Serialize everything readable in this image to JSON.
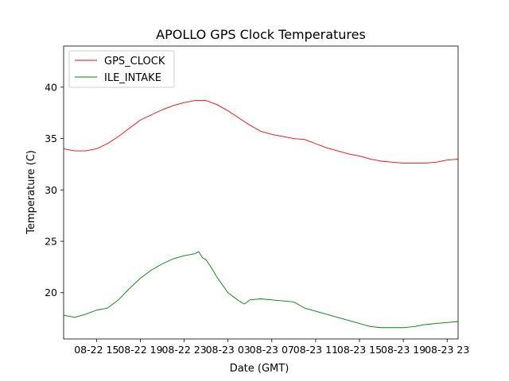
{
  "chart_data": {
    "type": "line",
    "title": "APOLLO GPS Clock Temperatures",
    "xlabel": "Date (GMT)",
    "ylabel": "Temperature (C)",
    "x_unit": "hours",
    "xlim": [
      "08-22 12:00",
      "08-24 00:00"
    ],
    "ylim": [
      15.5,
      44
    ],
    "y_ticks": [
      20,
      25,
      30,
      35,
      40
    ],
    "x_ticks": [
      "08-22 15",
      "08-22 19",
      "08-22 23",
      "08-23 03",
      "08-23 07",
      "08-23 11",
      "08-23 15",
      "08-23 19",
      "08-23 23"
    ],
    "x_tick_times": [
      "08-22 15:00",
      "08-22 19:00",
      "08-22 23:00",
      "08-23 03:00",
      "08-23 07:00",
      "08-23 11:00",
      "08-23 15:00",
      "08-23 19:00",
      "08-23 23:00"
    ],
    "legend": {
      "position": "top-left"
    },
    "grid": false,
    "series": [
      {
        "name": "GPS_CLOCK",
        "color": "#ff0000",
        "points": [
          [
            "08-22 12:00",
            34.0
          ],
          [
            "08-22 13:00",
            33.8
          ],
          [
            "08-22 14:00",
            33.8
          ],
          [
            "08-22 15:00",
            34.0
          ],
          [
            "08-22 16:00",
            34.5
          ],
          [
            "08-22 17:00",
            35.2
          ],
          [
            "08-22 18:00",
            36.0
          ],
          [
            "08-22 19:00",
            36.8
          ],
          [
            "08-22 20:00",
            37.3
          ],
          [
            "08-22 21:00",
            37.8
          ],
          [
            "08-22 22:00",
            38.2
          ],
          [
            "08-22 23:00",
            38.5
          ],
          [
            "08-23 00:00",
            38.7
          ],
          [
            "08-23 01:00",
            38.7
          ],
          [
            "08-23 02:00",
            38.3
          ],
          [
            "08-23 03:00",
            37.7
          ],
          [
            "08-23 04:00",
            37.0
          ],
          [
            "08-23 05:00",
            36.3
          ],
          [
            "08-23 06:00",
            35.7
          ],
          [
            "08-23 07:00",
            35.4
          ],
          [
            "08-23 08:00",
            35.2
          ],
          [
            "08-23 09:00",
            35.0
          ],
          [
            "08-23 10:00",
            34.9
          ],
          [
            "08-23 11:00",
            34.5
          ],
          [
            "08-23 12:00",
            34.1
          ],
          [
            "08-23 13:00",
            33.8
          ],
          [
            "08-23 14:00",
            33.5
          ],
          [
            "08-23 15:00",
            33.3
          ],
          [
            "08-23 16:00",
            33.0
          ],
          [
            "08-23 17:00",
            32.8
          ],
          [
            "08-23 18:00",
            32.7
          ],
          [
            "08-23 19:00",
            32.6
          ],
          [
            "08-23 20:00",
            32.6
          ],
          [
            "08-23 21:00",
            32.6
          ],
          [
            "08-23 22:00",
            32.7
          ],
          [
            "08-23 23:00",
            32.9
          ],
          [
            "08-24 00:00",
            33.0
          ]
        ]
      },
      {
        "name": "ILE_INTAKE",
        "color": "#008000",
        "points": [
          [
            "08-22 12:00",
            17.8
          ],
          [
            "08-22 13:00",
            17.6
          ],
          [
            "08-22 14:00",
            17.9
          ],
          [
            "08-22 15:00",
            18.3
          ],
          [
            "08-22 16:00",
            18.5
          ],
          [
            "08-22 17:00",
            19.3
          ],
          [
            "08-22 18:00",
            20.4
          ],
          [
            "08-22 19:00",
            21.4
          ],
          [
            "08-22 20:00",
            22.2
          ],
          [
            "08-22 21:00",
            22.8
          ],
          [
            "08-22 22:00",
            23.3
          ],
          [
            "08-22 23:00",
            23.6
          ],
          [
            "08-23 00:00",
            23.8
          ],
          [
            "08-23 00:20",
            24.0
          ],
          [
            "08-23 00:40",
            23.4
          ],
          [
            "08-23 01:00",
            23.2
          ],
          [
            "08-23 01:30",
            22.4
          ],
          [
            "08-23 02:00",
            21.5
          ],
          [
            "08-23 03:00",
            20.0
          ],
          [
            "08-23 04:00",
            19.2
          ],
          [
            "08-23 04:30",
            18.9
          ],
          [
            "08-23 05:00",
            19.3
          ],
          [
            "08-23 06:00",
            19.4
          ],
          [
            "08-23 07:00",
            19.3
          ],
          [
            "08-23 08:00",
            19.2
          ],
          [
            "08-23 09:00",
            19.1
          ],
          [
            "08-23 10:00",
            18.5
          ],
          [
            "08-23 11:00",
            18.2
          ],
          [
            "08-23 12:00",
            17.9
          ],
          [
            "08-23 13:00",
            17.6
          ],
          [
            "08-23 14:00",
            17.3
          ],
          [
            "08-23 15:00",
            17.0
          ],
          [
            "08-23 16:00",
            16.7
          ],
          [
            "08-23 17:00",
            16.6
          ],
          [
            "08-23 18:00",
            16.6
          ],
          [
            "08-23 19:00",
            16.6
          ],
          [
            "08-23 20:00",
            16.7
          ],
          [
            "08-23 21:00",
            16.9
          ],
          [
            "08-23 22:00",
            17.0
          ],
          [
            "08-23 23:00",
            17.1
          ],
          [
            "08-24 00:00",
            17.2
          ]
        ]
      }
    ]
  }
}
